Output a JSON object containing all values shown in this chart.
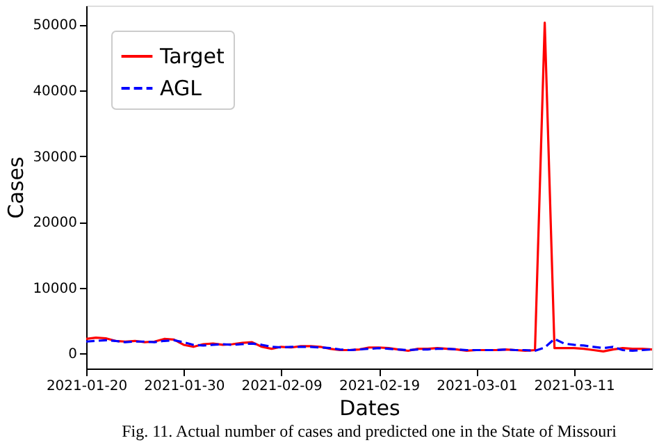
{
  "chart_data": {
    "type": "line",
    "xlabel": "Dates",
    "ylabel": "Cases",
    "annotations": [
      "Fig. 11. Actual number of cases and predicted one in the State of Missouri"
    ],
    "x": [
      "2021-01-20",
      "2021-01-21",
      "2021-01-22",
      "2021-01-23",
      "2021-01-24",
      "2021-01-25",
      "2021-01-26",
      "2021-01-27",
      "2021-01-28",
      "2021-01-29",
      "2021-01-30",
      "2021-01-31",
      "2021-02-01",
      "2021-02-02",
      "2021-02-03",
      "2021-02-04",
      "2021-02-05",
      "2021-02-06",
      "2021-02-07",
      "2021-02-08",
      "2021-02-09",
      "2021-02-10",
      "2021-02-11",
      "2021-02-12",
      "2021-02-13",
      "2021-02-14",
      "2021-02-15",
      "2021-02-16",
      "2021-02-17",
      "2021-02-18",
      "2021-02-19",
      "2021-02-20",
      "2021-02-21",
      "2021-02-22",
      "2021-02-23",
      "2021-02-24",
      "2021-02-25",
      "2021-02-26",
      "2021-02-27",
      "2021-02-28",
      "2021-03-01",
      "2021-03-02",
      "2021-03-03",
      "2021-03-04",
      "2021-03-05",
      "2021-03-06",
      "2021-03-07",
      "2021-03-08",
      "2021-03-09",
      "2021-03-10",
      "2021-03-11",
      "2021-03-12",
      "2021-03-13",
      "2021-03-14",
      "2021-03-15",
      "2021-03-16",
      "2021-03-17",
      "2021-03-18",
      "2021-03-19"
    ],
    "series": [
      {
        "name": "Target",
        "color": "#ff0000",
        "line_style": "solid",
        "values": [
          2200,
          2400,
          2300,
          1900,
          1800,
          1900,
          1700,
          1800,
          2200,
          2100,
          1300,
          1000,
          1400,
          1500,
          1300,
          1400,
          1600,
          1700,
          1000,
          700,
          1000,
          900,
          1100,
          1100,
          1000,
          700,
          500,
          500,
          600,
          900,
          900,
          800,
          600,
          400,
          700,
          700,
          800,
          700,
          600,
          400,
          500,
          500,
          500,
          600,
          500,
          400,
          500,
          50300,
          800,
          800,
          800,
          700,
          500,
          300,
          600,
          800,
          700,
          700,
          600
        ]
      },
      {
        "name": "AGL",
        "color": "#0000ff",
        "line_style": "dashed",
        "values": [
          1800,
          1900,
          2000,
          1900,
          1700,
          1800,
          1800,
          1700,
          1900,
          2000,
          1700,
          1300,
          1200,
          1300,
          1400,
          1300,
          1400,
          1500,
          1300,
          1000,
          900,
          1000,
          1000,
          1000,
          900,
          800,
          600,
          500,
          600,
          700,
          800,
          700,
          600,
          500,
          600,
          600,
          700,
          700,
          600,
          500,
          500,
          500,
          500,
          600,
          500,
          500,
          400,
          900,
          2200,
          1500,
          1300,
          1200,
          1000,
          800,
          1000,
          500,
          400,
          500,
          600
        ]
      }
    ],
    "xlim": [
      "2021-01-20",
      "2021-03-19"
    ],
    "xticks": [
      "2021-01-20",
      "2021-01-30",
      "2021-02-09",
      "2021-02-19",
      "2021-03-01",
      "2021-03-11"
    ],
    "ylim": [
      -2300,
      52900
    ],
    "yticks": [
      0,
      10000,
      20000,
      30000,
      40000,
      50000
    ],
    "grid": false,
    "legend": "top left",
    "marker": "none"
  }
}
